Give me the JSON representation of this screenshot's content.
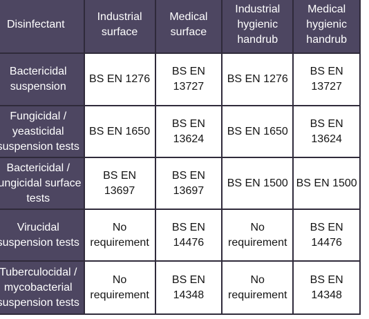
{
  "table": {
    "headers": [
      "Disinfectant",
      "Industrial\nsurface",
      "Medical\nsurface",
      "Industrial\nhygienic\nhandrub",
      "Medical\nhygienic\nhandrub"
    ],
    "rows": [
      {
        "label": "Bactericidal\nsuspension",
        "cells": [
          "BS EN 1276",
          "BS EN\n13727",
          "BS EN 1276",
          "BS EN\n13727"
        ]
      },
      {
        "label": "Fungicidal /\nyeasticidal\nsuspension tests",
        "cells": [
          "BS EN 1650",
          "BS EN\n13624",
          "BS EN 1650",
          "BS EN\n13624"
        ]
      },
      {
        "label": "Bactericidal /\nfungicidal surface\ntests",
        "cells": [
          "BS EN\n13697",
          "BS EN\n13697",
          "BS EN 1500",
          "BS EN 1500"
        ]
      },
      {
        "label": "Virucidal\nsuspension tests",
        "cells": [
          "No\nrequirement",
          "BS EN\n14476",
          "No\nrequirement",
          "BS EN\n14476"
        ]
      },
      {
        "label": "Tuberculocidal /\nmycobacterial\nsuspension tests",
        "cells": [
          "No\nrequirement",
          "BS EN\n14348",
          "No\nrequirement",
          "BS EN\n14348"
        ]
      }
    ]
  },
  "colors": {
    "header_bg": "#4d4661",
    "cell_bg": "#ffffff",
    "border": "#2f2a3a"
  }
}
